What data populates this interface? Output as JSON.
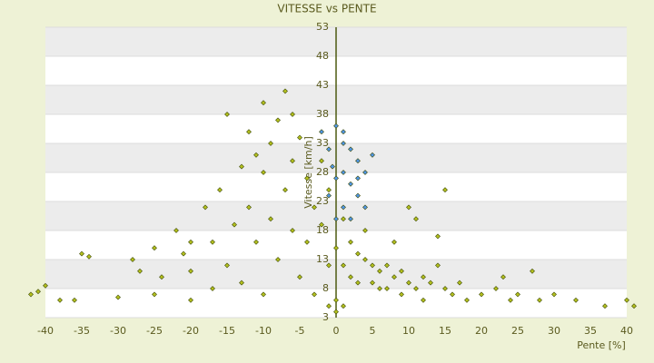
{
  "chart_data": {
    "type": "scatter",
    "title": "VITESSE vs PENTE",
    "x_label": "Pente [%]",
    "y_label": "Vitesse [km/h]",
    "xlim": [
      -40,
      40
    ],
    "xticks": [
      -40,
      -35,
      -30,
      -25,
      -20,
      -15,
      -10,
      -5,
      0,
      5,
      10,
      15,
      20,
      25,
      30,
      35,
      40
    ],
    "ylim": [
      3,
      53
    ],
    "yticks": [
      3,
      8,
      13,
      18,
      23,
      28,
      33,
      38,
      43,
      48,
      53
    ],
    "grid": true,
    "series": [
      {
        "color": "#b3bf1e",
        "x": [
          -40,
          -41,
          -35,
          -34,
          -38,
          -36,
          -30,
          -28,
          -27,
          -25,
          -24,
          -22,
          -21,
          -20,
          -20,
          -18,
          -17,
          -16,
          -15,
          -15,
          -14,
          -13,
          -13,
          -12,
          -12,
          -11,
          -10,
          -10,
          -10,
          -9,
          -9,
          -8,
          -8,
          -7,
          -7,
          -6,
          -6,
          -5,
          -5,
          -4,
          -4,
          -3,
          -3,
          -2,
          -2,
          -1,
          -1,
          0,
          0,
          1,
          1,
          2,
          2,
          3,
          3,
          4,
          5,
          5,
          6,
          6,
          7,
          7,
          8,
          9,
          9,
          10,
          11,
          12,
          12,
          13,
          14,
          15,
          15,
          16,
          17,
          18,
          20,
          22,
          23,
          24,
          25,
          27,
          28,
          30,
          33,
          37,
          40,
          41,
          -42,
          -20,
          -17,
          11,
          14,
          10,
          8,
          -6,
          -11,
          4,
          -25,
          0,
          -1,
          1
        ],
        "values": [
          8.5,
          7.5,
          14,
          13.5,
          6,
          6,
          6.5,
          13,
          11,
          15,
          10,
          18,
          14,
          11,
          6,
          22,
          16,
          25,
          38,
          12,
          19,
          29,
          9,
          35,
          22,
          16,
          40,
          28,
          7,
          33,
          20,
          37,
          13,
          42,
          25,
          30,
          18,
          34,
          10,
          27,
          16,
          22,
          7,
          30,
          19,
          25,
          12,
          15,
          6,
          20,
          12,
          16,
          10,
          14,
          9,
          13,
          12,
          9,
          11,
          8,
          12,
          8,
          10,
          11,
          7,
          9,
          8,
          10,
          6,
          9,
          12,
          25,
          8,
          7,
          9,
          6,
          7,
          8,
          10,
          6,
          7,
          11,
          6,
          7,
          6,
          5,
          6,
          5,
          7,
          16,
          8,
          20,
          17,
          22,
          16,
          38,
          31,
          18,
          7,
          4,
          5,
          5
        ]
      },
      {
        "color": "#4f95e6",
        "x": [
          0,
          1,
          -1,
          2,
          3,
          1,
          0,
          2,
          -1,
          3,
          1,
          4,
          0,
          2,
          5,
          -2,
          3,
          4,
          1,
          -0.5
        ],
        "values": [
          36,
          35,
          32,
          32,
          30,
          28,
          27,
          26,
          24,
          24,
          22,
          22,
          20,
          20,
          31,
          35,
          27,
          28,
          33,
          29
        ]
      }
    ]
  }
}
